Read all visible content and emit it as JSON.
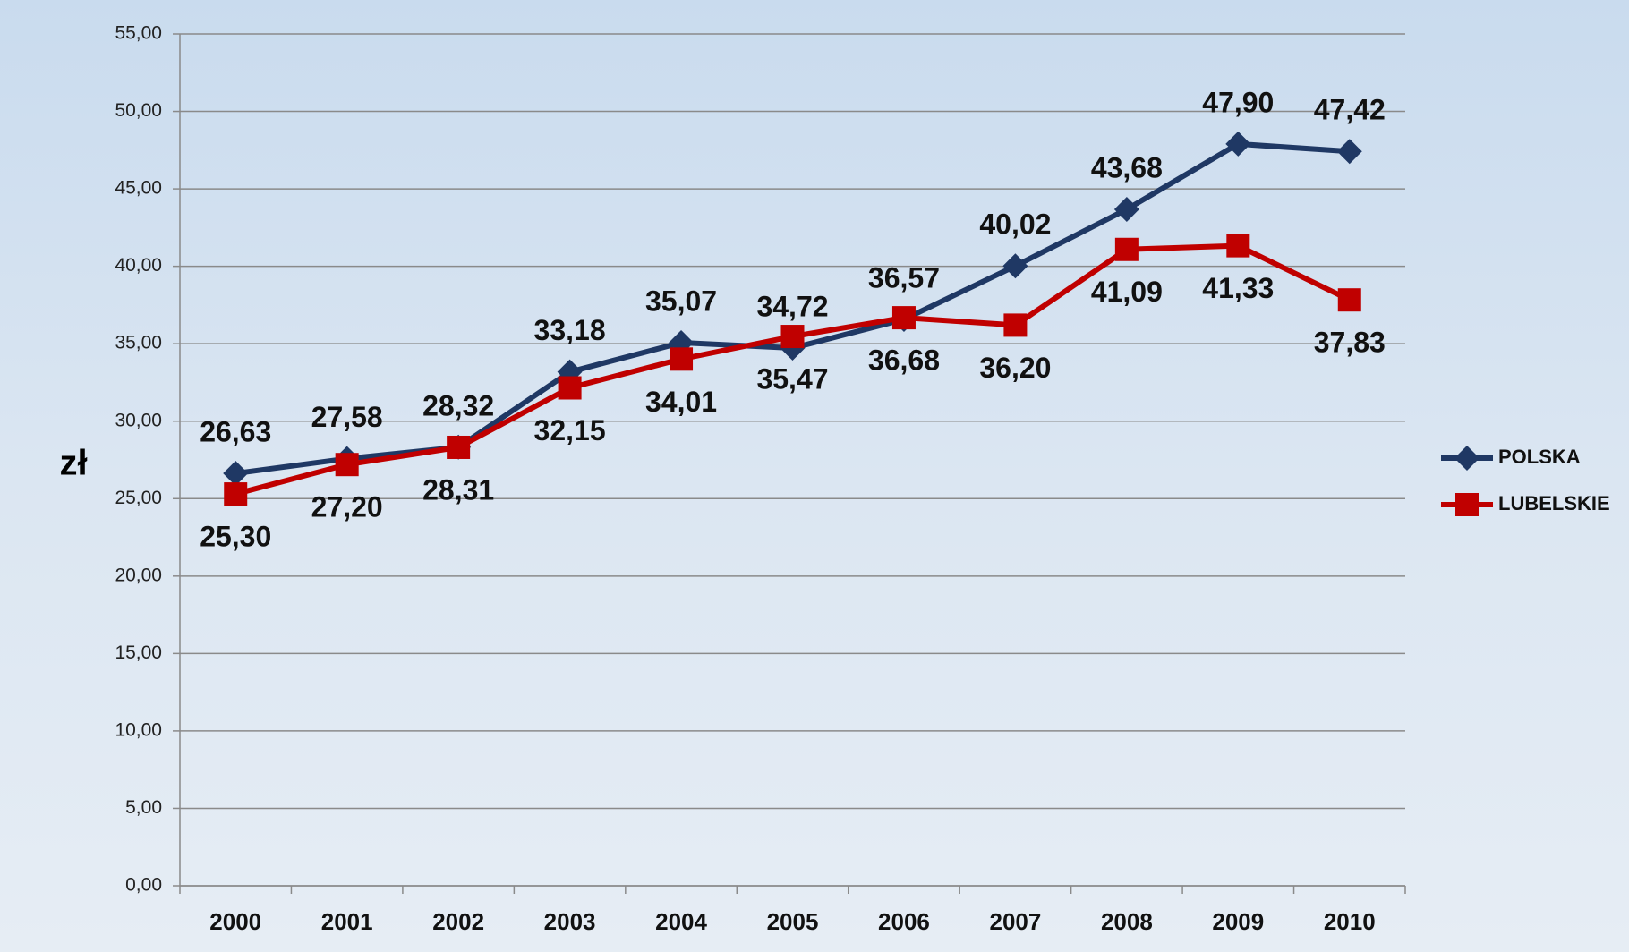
{
  "chart_data": {
    "type": "line",
    "y_label": "zł",
    "categories": [
      "2000",
      "2001",
      "2002",
      "2003",
      "2004",
      "2005",
      "2006",
      "2007",
      "2008",
      "2009",
      "2010"
    ],
    "series": [
      {
        "name": "POLSKA",
        "color": "#1f3864",
        "marker": "diamond",
        "values": [
          26.63,
          27.58,
          28.32,
          33.18,
          35.07,
          34.72,
          36.57,
          40.02,
          43.68,
          47.9,
          47.42
        ],
        "value_labels": [
          "26,63",
          "27,58",
          "28,32",
          "33,18",
          "35,07",
          "34,72",
          "36,57",
          "40,02",
          "43,68",
          "47,90",
          "47,42"
        ]
      },
      {
        "name": "LUBELSKIE",
        "color": "#c00000",
        "marker": "square",
        "values": [
          25.3,
          27.2,
          28.31,
          32.15,
          34.01,
          35.47,
          36.68,
          36.2,
          41.09,
          41.33,
          37.83
        ],
        "value_labels": [
          "25,30",
          "27,20",
          "28,31",
          "32,15",
          "34,01",
          "35,47",
          "36,68",
          "36,20",
          "41,09",
          "41,33",
          "37,83"
        ]
      }
    ],
    "ylim": [
      0,
      55
    ],
    "yticks": [
      {
        "value": 0,
        "label": "0,00"
      },
      {
        "value": 5,
        "label": "5,00"
      },
      {
        "value": 10,
        "label": "10,00"
      },
      {
        "value": 15,
        "label": "15,00"
      },
      {
        "value": 20,
        "label": "20,00"
      },
      {
        "value": 25,
        "label": "25,00"
      },
      {
        "value": 30,
        "label": "30,00"
      },
      {
        "value": 35,
        "label": "35,00"
      },
      {
        "value": 40,
        "label": "40,00"
      },
      {
        "value": 45,
        "label": "45,00"
      },
      {
        "value": 50,
        "label": "50,00"
      },
      {
        "value": 55,
        "label": "55,00"
      }
    ],
    "grid": true,
    "legend": "right"
  }
}
